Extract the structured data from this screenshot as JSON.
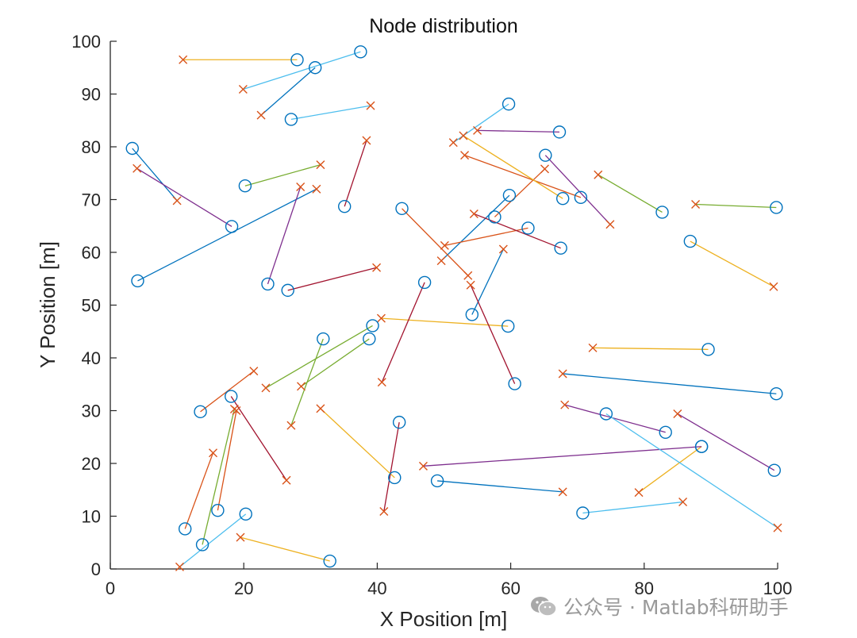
{
  "chart_data": {
    "type": "scatter",
    "title": "Node distribution",
    "xlabel": "X Position [m]",
    "ylabel": "Y Position [m]",
    "xlim": [
      0,
      100
    ],
    "ylim": [
      0,
      100
    ],
    "xticks": [
      0,
      20,
      40,
      60,
      80,
      100
    ],
    "yticks": [
      0,
      10,
      20,
      30,
      40,
      50,
      60,
      70,
      80,
      90,
      100
    ],
    "grid": false,
    "marker_circle_meaning": "",
    "marker_cross_meaning": "",
    "palette": [
      "#0072BD",
      "#D95319",
      "#EDB120",
      "#7E2F8E",
      "#77AC30",
      "#4DBEEE",
      "#A2142F"
    ],
    "links": [
      {
        "circle": [
          3.3,
          79.7
        ],
        "cross": [
          10.0,
          69.8
        ],
        "color": "#0072BD"
      },
      {
        "circle": [
          4.1,
          54.6
        ],
        "cross": [
          30.9,
          72.0
        ],
        "color": "#0072BD"
      },
      {
        "circle": [
          30.7,
          95.0
        ],
        "cross": [
          22.6,
          86.0
        ],
        "color": "#0072BD"
      },
      {
        "circle": [
          59.8,
          70.8
        ],
        "cross": [
          49.6,
          58.4
        ],
        "color": "#0072BD"
      },
      {
        "circle": [
          54.2,
          48.2
        ],
        "cross": [
          58.9,
          60.6
        ],
        "color": "#0072BD"
      },
      {
        "circle": [
          99.8,
          33.2
        ],
        "cross": [
          67.8,
          37.0
        ],
        "color": "#0072BD"
      },
      {
        "circle": [
          49.0,
          16.7
        ],
        "cross": [
          67.8,
          14.6
        ],
        "color": "#0072BD"
      },
      {
        "circle": [
          13.5,
          29.8
        ],
        "cross": [
          21.5,
          37.5
        ],
        "color": "#D95319"
      },
      {
        "circle": [
          11.2,
          7.6
        ],
        "cross": [
          15.4,
          22.0
        ],
        "color": "#D95319"
      },
      {
        "circle": [
          16.1,
          11.1
        ],
        "cross": [
          18.9,
          30.0
        ],
        "color": "#D95319"
      },
      {
        "circle": [
          62.6,
          64.6
        ],
        "cross": [
          50.1,
          61.3
        ],
        "color": "#D95319"
      },
      {
        "circle": [
          57.6,
          66.7
        ],
        "cross": [
          65.1,
          75.8
        ],
        "color": "#D95319"
      },
      {
        "circle": [
          43.7,
          68.3
        ],
        "cross": [
          53.6,
          55.6
        ],
        "color": "#D95319"
      },
      {
        "circle": [
          70.5,
          70.4
        ],
        "cross": [
          53.1,
          78.4
        ],
        "color": "#D95319"
      },
      {
        "circle": [
          28.0,
          96.5
        ],
        "cross": [
          10.9,
          96.5
        ],
        "color": "#EDB120"
      },
      {
        "circle": [
          67.8,
          70.2
        ],
        "cross": [
          52.9,
          82.1
        ],
        "color": "#EDB120"
      },
      {
        "circle": [
          86.9,
          62.1
        ],
        "cross": [
          99.4,
          53.5
        ],
        "color": "#EDB120"
      },
      {
        "circle": [
          59.6,
          46.0
        ],
        "cross": [
          40.6,
          47.5
        ],
        "color": "#EDB120"
      },
      {
        "circle": [
          42.6,
          17.3
        ],
        "cross": [
          31.5,
          30.4
        ],
        "color": "#EDB120"
      },
      {
        "circle": [
          32.9,
          1.5
        ],
        "cross": [
          19.5,
          6.0
        ],
        "color": "#EDB120"
      },
      {
        "circle": [
          88.6,
          23.2
        ],
        "cross": [
          79.2,
          14.5
        ],
        "color": "#EDB120"
      },
      {
        "circle": [
          89.6,
          41.6
        ],
        "cross": [
          72.3,
          41.9
        ],
        "color": "#EDB120"
      },
      {
        "circle": [
          18.2,
          64.9
        ],
        "cross": [
          4.0,
          75.9
        ],
        "color": "#7E2F8E"
      },
      {
        "circle": [
          23.6,
          54.0
        ],
        "cross": [
          28.5,
          72.4
        ],
        "color": "#7E2F8E"
      },
      {
        "circle": [
          67.3,
          82.8
        ],
        "cross": [
          55.0,
          83.1
        ],
        "color": "#7E2F8E"
      },
      {
        "circle": [
          65.2,
          78.4
        ],
        "cross": [
          74.9,
          65.3
        ],
        "color": "#7E2F8E"
      },
      {
        "circle": [
          83.2,
          25.9
        ],
        "cross": [
          68.1,
          31.1
        ],
        "color": "#7E2F8E"
      },
      {
        "circle": [
          99.5,
          18.7
        ],
        "cross": [
          85.0,
          29.4
        ],
        "color": "#7E2F8E"
      },
      {
        "circle": [
          88.6,
          23.2
        ],
        "cross": [
          46.9,
          19.5
        ],
        "color": "#7E2F8E"
      },
      {
        "circle": [
          20.2,
          72.6
        ],
        "cross": [
          31.5,
          76.6
        ],
        "color": "#77AC30"
      },
      {
        "circle": [
          82.7,
          67.6
        ],
        "cross": [
          73.1,
          74.7
        ],
        "color": "#77AC30"
      },
      {
        "circle": [
          99.8,
          68.5
        ],
        "cross": [
          87.7,
          69.1
        ],
        "color": "#77AC30"
      },
      {
        "circle": [
          31.9,
          43.6
        ],
        "cross": [
          27.1,
          27.2
        ],
        "color": "#77AC30"
      },
      {
        "circle": [
          39.3,
          46.1
        ],
        "cross": [
          23.3,
          34.3
        ],
        "color": "#77AC30"
      },
      {
        "circle": [
          13.8,
          4.6
        ],
        "cross": [
          18.6,
          30.3
        ],
        "color": "#77AC30"
      },
      {
        "circle": [
          38.8,
          43.6
        ],
        "cross": [
          28.6,
          34.6
        ],
        "color": "#77AC30"
      },
      {
        "circle": [
          37.5,
          98.0
        ],
        "cross": [
          19.9,
          90.9
        ],
        "color": "#4DBEEE"
      },
      {
        "circle": [
          27.1,
          85.2
        ],
        "cross": [
          39.0,
          87.8
        ],
        "color": "#4DBEEE"
      },
      {
        "circle": [
          59.7,
          88.1
        ],
        "cross": [
          51.4,
          80.8
        ],
        "color": "#4DBEEE"
      },
      {
        "circle": [
          20.3,
          10.4
        ],
        "cross": [
          10.4,
          0.4
        ],
        "color": "#4DBEEE"
      },
      {
        "circle": [
          74.3,
          29.4
        ],
        "cross": [
          100.0,
          7.8
        ],
        "color": "#4DBEEE"
      },
      {
        "circle": [
          70.8,
          10.6
        ],
        "cross": [
          85.8,
          12.7
        ],
        "color": "#4DBEEE"
      },
      {
        "circle": [
          67.5,
          60.8
        ],
        "cross": [
          54.5,
          67.3
        ],
        "color": "#A2142F"
      },
      {
        "circle": [
          35.1,
          68.7
        ],
        "cross": [
          38.4,
          81.2
        ],
        "color": "#A2142F"
      },
      {
        "circle": [
          26.6,
          52.8
        ],
        "cross": [
          39.9,
          57.1
        ],
        "color": "#A2142F"
      },
      {
        "circle": [
          47.1,
          54.3
        ],
        "cross": [
          40.7,
          35.4
        ],
        "color": "#A2142F"
      },
      {
        "circle": [
          60.6,
          35.1
        ],
        "cross": [
          54.0,
          53.8
        ],
        "color": "#A2142F"
      },
      {
        "circle": [
          43.3,
          27.8
        ],
        "cross": [
          41.0,
          10.9
        ],
        "color": "#A2142F"
      },
      {
        "circle": [
          18.1,
          32.7
        ],
        "cross": [
          26.4,
          16.8
        ],
        "color": "#A2142F"
      }
    ]
  },
  "watermark": {
    "text": "公众号 · Matlab科研助手",
    "icon": "wechat-icon",
    "color": "#9a9a9a"
  }
}
